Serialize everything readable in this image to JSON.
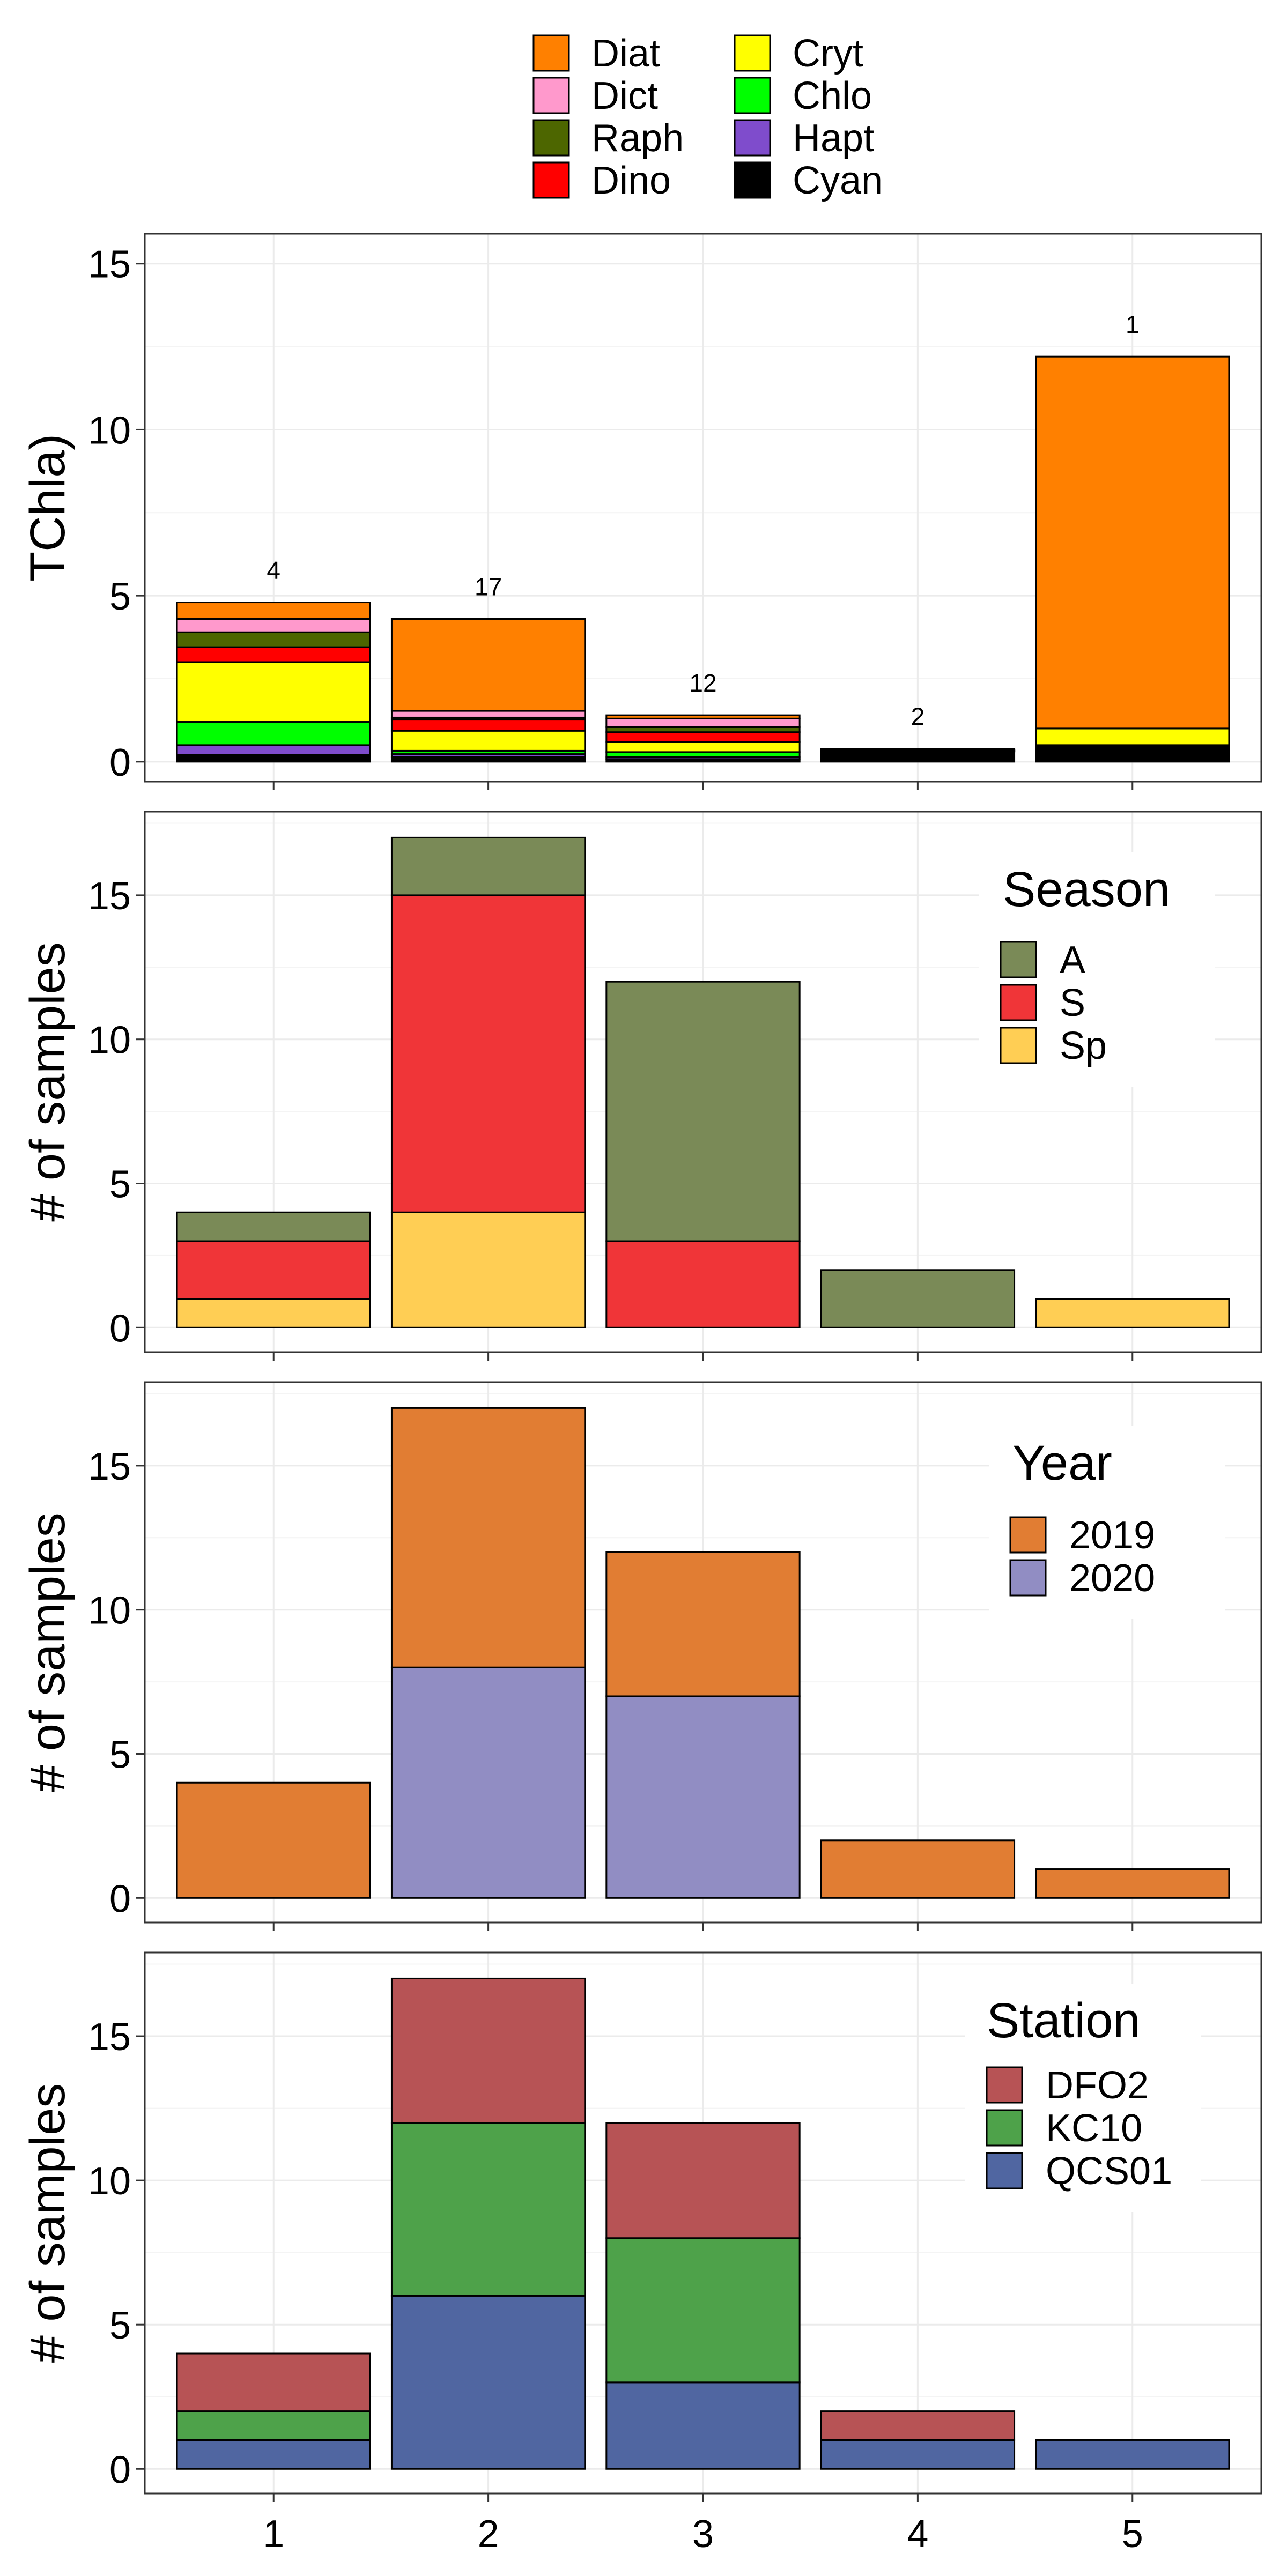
{
  "legend_top": {
    "entries": [
      {
        "label": "Diat",
        "color": "#FF8000"
      },
      {
        "label": "Dict",
        "color": "#FF99CC"
      },
      {
        "label": "Raph",
        "color": "#4D6600"
      },
      {
        "label": "Dino",
        "color": "#FF0000"
      },
      {
        "label": "Cryt",
        "color": "#FFFF00"
      },
      {
        "label": "Chlo",
        "color": "#00FF00"
      },
      {
        "label": "Hapt",
        "color": "#7F4CCC"
      },
      {
        "label": "Cyan",
        "color": "#000000"
      }
    ]
  },
  "chart_data": [
    {
      "id": "tchla",
      "type": "bar",
      "stacked": true,
      "categories": [
        "1",
        "2",
        "3",
        "4",
        "5"
      ],
      "xlabel": "",
      "ylabel": "TChla)",
      "ylim": [
        -0.6,
        15.9
      ],
      "yticks": [
        0,
        5,
        10,
        15
      ],
      "grid": true,
      "legend": "top",
      "series": [
        {
          "name": "Cyan",
          "color": "#000000",
          "values": [
            0.2,
            0.15,
            0.08,
            0.3,
            0.5
          ]
        },
        {
          "name": "Hapt",
          "color": "#7F4CCC",
          "values": [
            0.3,
            0.08,
            0.06,
            0.01,
            0.0
          ]
        },
        {
          "name": "Chlo",
          "color": "#00FF00",
          "values": [
            0.7,
            0.1,
            0.15,
            0.01,
            0.0
          ]
        },
        {
          "name": "Cryt",
          "color": "#FFFF00",
          "values": [
            1.8,
            0.6,
            0.3,
            0.01,
            0.5
          ]
        },
        {
          "name": "Dino",
          "color": "#FF0000",
          "values": [
            0.45,
            0.35,
            0.3,
            0.01,
            0.0
          ]
        },
        {
          "name": "Raph",
          "color": "#4D6600",
          "values": [
            0.45,
            0.05,
            0.15,
            0.01,
            0.0
          ]
        },
        {
          "name": "Dict",
          "color": "#FF99CC",
          "values": [
            0.4,
            0.2,
            0.26,
            0.01,
            0.0
          ]
        },
        {
          "name": "Diat",
          "color": "#FF8000",
          "values": [
            0.5,
            2.77,
            0.1,
            0.03,
            11.2
          ]
        }
      ],
      "data_labels": [
        "4",
        "17",
        "12",
        "2",
        "1"
      ]
    },
    {
      "id": "season",
      "type": "bar",
      "stacked": true,
      "categories": [
        "1",
        "2",
        "3",
        "4",
        "5"
      ],
      "xlabel": "",
      "ylabel": "# of samples",
      "ylim": [
        -0.85,
        17.9
      ],
      "yticks": [
        0,
        5,
        10,
        15
      ],
      "grid": true,
      "legend": "top-right",
      "legend_title": "Season",
      "series": [
        {
          "name": "Sp",
          "color": "#FFCE54",
          "values": [
            1,
            4,
            0,
            0,
            1
          ]
        },
        {
          "name": "S",
          "color": "#F03538",
          "values": [
            2,
            11,
            3,
            0,
            0
          ]
        },
        {
          "name": "A",
          "color": "#7A8A57",
          "values": [
            1,
            2,
            9,
            2,
            0
          ]
        }
      ],
      "legend_order": [
        "A",
        "S",
        "Sp"
      ]
    },
    {
      "id": "year",
      "type": "bar",
      "stacked": true,
      "categories": [
        "1",
        "2",
        "3",
        "4",
        "5"
      ],
      "xlabel": "",
      "ylabel": "# of samples",
      "ylim": [
        -0.85,
        17.9
      ],
      "yticks": [
        0,
        5,
        10,
        15
      ],
      "grid": true,
      "legend": "top-right",
      "legend_title": "Year",
      "series": [
        {
          "name": "2020",
          "color": "#918DC3",
          "values": [
            0,
            8,
            7,
            0,
            0
          ]
        },
        {
          "name": "2019",
          "color": "#E17D33",
          "values": [
            4,
            9,
            5,
            2,
            1
          ]
        }
      ],
      "legend_order": [
        "2019",
        "2020"
      ]
    },
    {
      "id": "station",
      "type": "bar",
      "stacked": true,
      "categories": [
        "1",
        "2",
        "3",
        "4",
        "5"
      ],
      "xlabel": "",
      "ylabel": "# of samples",
      "ylim": [
        -0.85,
        17.9
      ],
      "yticks": [
        0,
        5,
        10,
        15
      ],
      "grid": true,
      "legend": "top-right",
      "legend_title": "Station",
      "series": [
        {
          "name": "QCS01",
          "color": "#5066A1",
          "values": [
            1,
            6,
            3,
            1,
            1
          ]
        },
        {
          "name": "KC10",
          "color": "#4EA24A",
          "values": [
            1,
            6,
            5,
            0,
            0
          ]
        },
        {
          "name": "DFO2",
          "color": "#B75355",
          "values": [
            2,
            5,
            4,
            1,
            0
          ]
        }
      ],
      "legend_order": [
        "DFO2",
        "KC10",
        "QCS01"
      ]
    }
  ]
}
